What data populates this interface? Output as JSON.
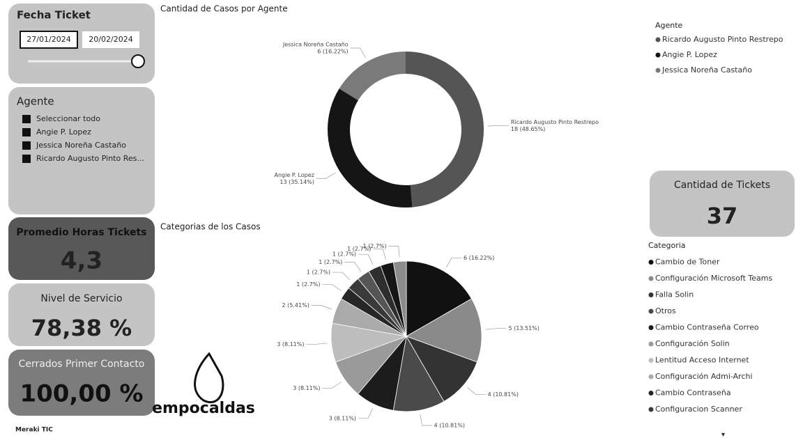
{
  "date_filter": {
    "title": "Fecha Ticket",
    "start": "27/01/2024",
    "end": "20/02/2024"
  },
  "agent_slicer": {
    "title": "Agente",
    "items": [
      "Seleccionar todo",
      "Angie P. Lopez",
      "Jessica Noreña Castaño",
      "Ricardo Augusto Pinto Res..."
    ]
  },
  "cards": [
    {
      "title": "Promedio Horas Tickets",
      "value": "4,3"
    },
    {
      "title": "Nivel de Servicio",
      "value": "78,38 %"
    },
    {
      "title": "Cerrados Primer Contacto",
      "value": "100,00 %"
    },
    {
      "title": "Cantidad de Tickets",
      "value": "37"
    }
  ],
  "logos": {
    "company": "empocaldas",
    "vendor": "Meraki TIC"
  },
  "chart_data": [
    {
      "type": "donut",
      "title": "Cantidad de Casos por Agente",
      "legend_title": "Agente",
      "categories": [
        "Ricardo Augusto Pinto Restrepo",
        "Angie P. Lopez",
        "Jessica Noreña Castaño"
      ],
      "values": [
        18,
        13,
        6
      ],
      "value_labels": [
        "18 (48.65%)",
        "13 (35.14%)",
        "6 (16.22%)"
      ],
      "colors": [
        "#555555",
        "#151515",
        "#7a7a7a"
      ]
    },
    {
      "type": "pie",
      "title": "Categorias de los Casos",
      "legend_title": "Categoria",
      "categories": [
        "Cambio de Toner",
        "Configuración Microsoft Teams",
        "Falla Solin",
        "Otros",
        "Cambio Contraseña Correo",
        "Configuración Solin",
        "Lentitud Acceso Internet",
        "Configuración Admi-Archi",
        "Cambio Contraseña",
        "Configuracion Scanner",
        null,
        null,
        null,
        null
      ],
      "values": [
        6,
        5,
        4,
        4,
        3,
        3,
        3,
        2,
        1,
        1,
        1,
        1,
        1,
        1
      ],
      "value_labels": [
        "6 (16.22%)",
        "5 (13.51%)",
        "4 (10.81%)",
        "4 (10.81%)",
        "3 (8.11%)",
        "3 (8.11%)",
        "3 (8.11%)",
        "2 (5.41%)",
        "1 (2.7%)",
        "1 (2.7%)",
        "1 (2.7%)",
        "1 (2.7%)",
        "1 (2.7%)",
        "1 (2.7%)"
      ],
      "colors": [
        "#111111",
        "#8a8a8a",
        "#333333",
        "#4a4a4a",
        "#1c1c1c",
        "#9a9a9a",
        "#bdbdbd",
        "#aaaaaa",
        "#262626",
        "#3a3a3a",
        "#555555",
        "#2e2e2e",
        "#161616",
        "#8c8c8c"
      ]
    }
  ]
}
